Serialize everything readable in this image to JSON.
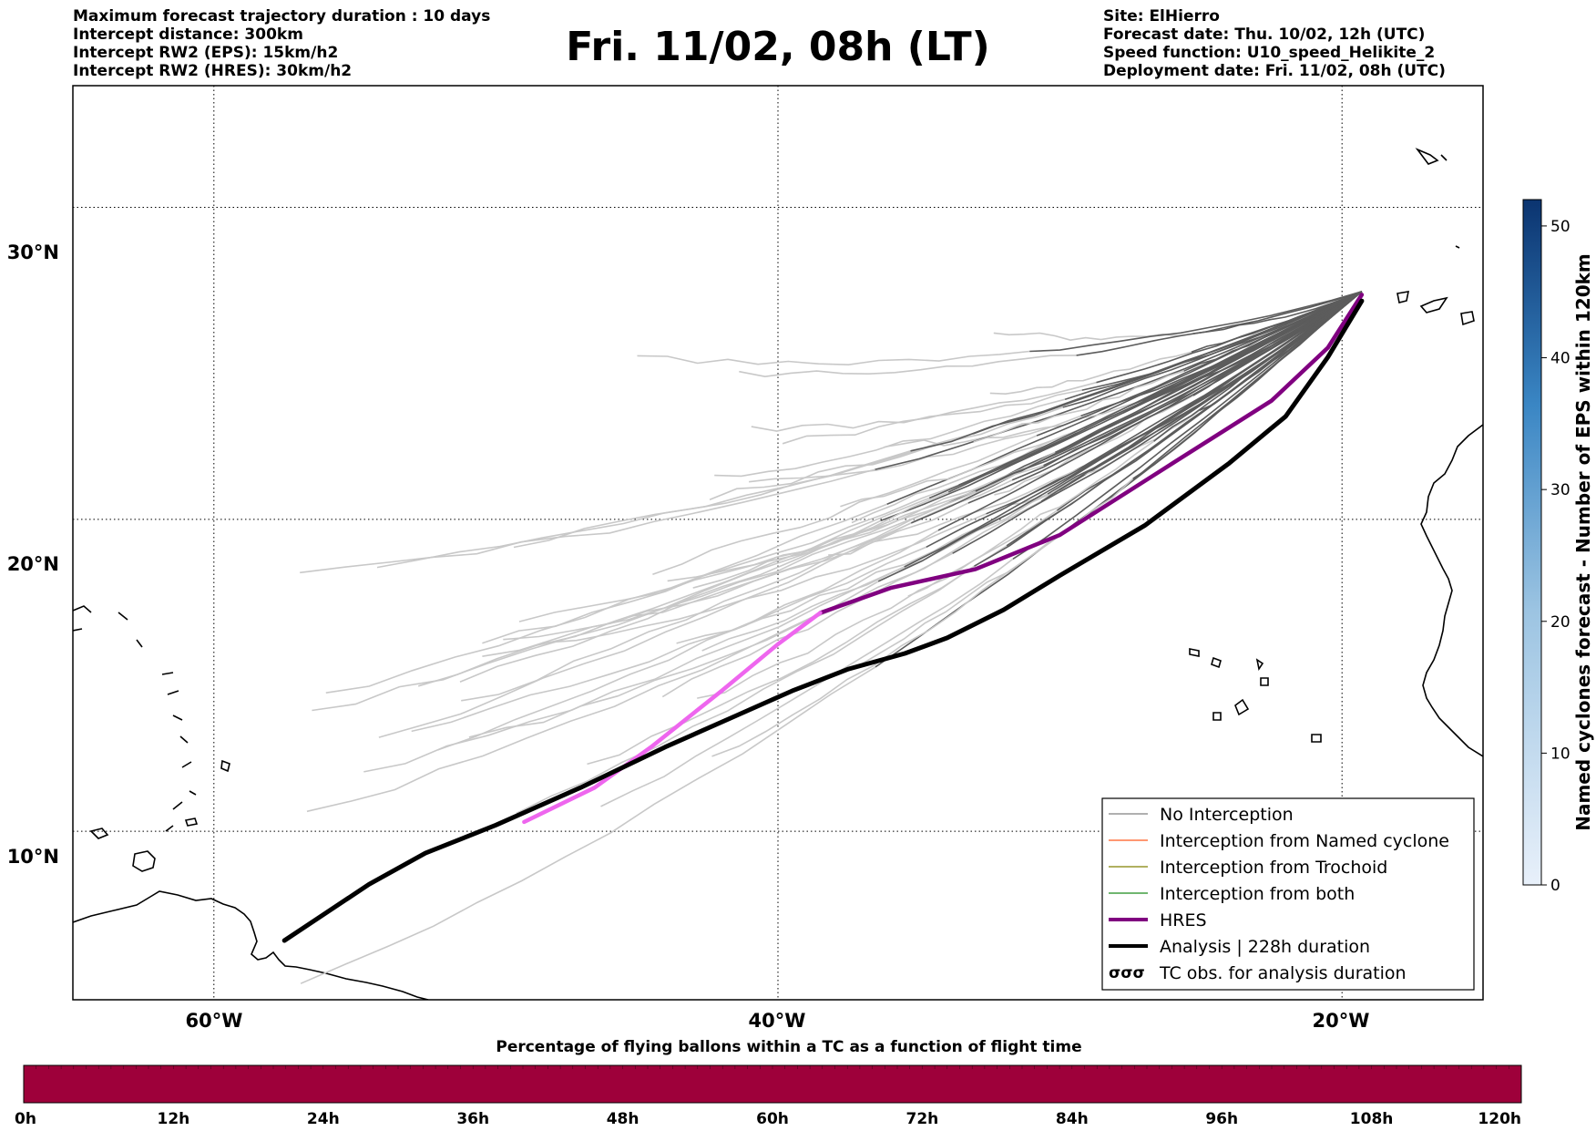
{
  "header": {
    "left_lines": [
      "Maximum forecast trajectory duration : 10 days",
      "Intercept distance: 300km",
      "Intercept RW2 (EPS):  15km/h2",
      "Intercept RW2 (HRES): 30km/h2"
    ],
    "title": "Fri. 11/02, 08h (LT)",
    "right_lines": [
      "Site: ElHierro",
      "Forecast date: Thu. 10/02, 12h (UTC)",
      "Speed function: U10_speed_Helikite_2",
      "Deployment date: Fri. 11/02, 08h (UTC)"
    ]
  },
  "map": {
    "lon_labels": [
      "60°W",
      "40°W",
      "20°W"
    ],
    "lat_labels": [
      "30°N",
      "20°N",
      "10°N"
    ],
    "lon_range": [
      -65,
      -15
    ],
    "lat_range": [
      4.6,
      33.9
    ],
    "gridline_lons": [
      -60,
      -40,
      -20
    ],
    "gridline_lats": [
      30,
      20,
      10
    ]
  },
  "legend": {
    "items": [
      {
        "label": "No Interception",
        "color": "#808080"
      },
      {
        "label": "Interception from Named cyclone",
        "color": "#ff5a1e"
      },
      {
        "label": "Interception from Trochoid",
        "color": "#808000"
      },
      {
        "label": "Interception from both",
        "color": "#1a8a1a"
      },
      {
        "label": "HRES",
        "color": "#800080"
      },
      {
        "label": "Analysis | 228h duration",
        "color": "#000000"
      },
      {
        "label": "TC obs. for analysis duration",
        "color": "#000000",
        "icon": "cyclone-symbol-icon"
      }
    ]
  },
  "colorbar_right": {
    "label": "Named cyclones forecast - Number of EPS within 120km",
    "ticks": [
      "0",
      "10",
      "20",
      "30",
      "40",
      "50"
    ],
    "tick_values": [
      0,
      10,
      20,
      30,
      40,
      50
    ],
    "max": 52,
    "color_low": "#e8f0fa",
    "color_high": "#0b3470"
  },
  "colorbar_bottom": {
    "title": "Percentage of flying ballons within a TC as a function of flight time",
    "ticks": [
      "0h",
      "12h",
      "24h",
      "36h",
      "48h",
      "60h",
      "72h",
      "84h",
      "96h",
      "108h",
      "120h"
    ],
    "fill_color": "#9e003a"
  },
  "trajectories": {
    "hres": [
      [
        -19.3,
        27.2
      ],
      [
        -20.5,
        25.5
      ],
      [
        -22.5,
        23.8
      ],
      [
        -26,
        21.8
      ],
      [
        -30,
        19.5
      ],
      [
        -33,
        18.4
      ],
      [
        -36,
        17.8
      ],
      [
        -38.5,
        17.0
      ],
      [
        -40,
        16.0
      ],
      [
        -42,
        14.5
      ],
      [
        -44.5,
        12.7
      ],
      [
        -46.5,
        11.4
      ],
      [
        -49,
        10.3
      ]
    ],
    "hres_colors": [
      "#800080",
      "#ee66ee"
    ],
    "analysis": [
      [
        -19.3,
        27.0
      ],
      [
        -20.5,
        25.2
      ],
      [
        -22,
        23.3
      ],
      [
        -24,
        21.8
      ],
      [
        -27,
        19.8
      ],
      [
        -30,
        18.2
      ],
      [
        -32,
        17.1
      ],
      [
        -34,
        16.2
      ],
      [
        -35.5,
        15.7
      ],
      [
        -37.5,
        15.2
      ],
      [
        -39.5,
        14.5
      ],
      [
        -41.5,
        13.7
      ],
      [
        -44,
        12.7
      ],
      [
        -47,
        11.4
      ],
      [
        -50,
        10.2
      ],
      [
        -52.5,
        9.3
      ],
      [
        -54.5,
        8.3
      ],
      [
        -56,
        7.4
      ],
      [
        -57.5,
        6.5
      ]
    ]
  }
}
